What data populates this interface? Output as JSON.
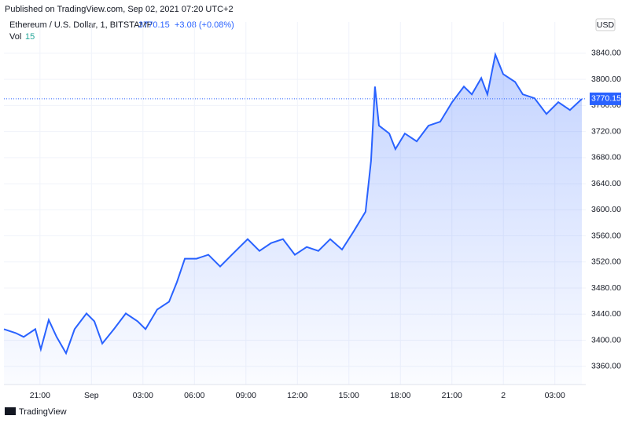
{
  "header": {
    "published": "Published on TradingView.com, Sep 02, 2021 07:20 UTC+2"
  },
  "legend": {
    "symbol": "Ethereum / U.S. Dollar, 1, BITSTAMP",
    "price": "3770.15",
    "change": "+3.08 (+0.08%)",
    "vol_label": "Vol",
    "vol_value": "15"
  },
  "currency": "USD",
  "footer": "TradingView",
  "chart_data": {
    "type": "area",
    "color": "#2962ff",
    "x": [
      0.9,
      1.59,
      2.05,
      2.73,
      3.05,
      3.51,
      3.97,
      4.52,
      5.02,
      5.71,
      6.17,
      6.63,
      7.31,
      8.0,
      8.69,
      9.15,
      9.83,
      10.52,
      10.98,
      11.44,
      12.12,
      12.81,
      13.5,
      14.18,
      15.1,
      15.79,
      16.47,
      17.16,
      17.85,
      18.54,
      19.22,
      19.91,
      20.6,
      21.28,
      21.97,
      22.29,
      22.52,
      22.75,
      23.35,
      23.71,
      24.26,
      24.95,
      25.64,
      26.32,
      27.01,
      27.7,
      28.16,
      28.71,
      29.07,
      29.53,
      29.99,
      30.68,
      31.13,
      31.82,
      32.51,
      33.2,
      33.88,
      34.57
    ],
    "values": [
      3417,
      3411,
      3405,
      3417,
      3386,
      3431,
      3405,
      3380,
      3417,
      3441,
      3429,
      3395,
      3417,
      3441,
      3429,
      3417,
      3447,
      3459,
      3489,
      3525,
      3525,
      3531,
      3513,
      3531,
      3555,
      3537,
      3549,
      3555,
      3531,
      3543,
      3537,
      3555,
      3539,
      3567,
      3597,
      3675,
      3789,
      3729,
      3717,
      3693,
      3717,
      3705,
      3729,
      3735,
      3765,
      3789,
      3777,
      3802,
      3777,
      3838,
      3808,
      3796,
      3777,
      3771,
      3747,
      3765,
      3753,
      3770
    ],
    "last_price": {
      "value": 3770.15,
      "label": "3770.15"
    },
    "xlim": [
      0.9,
      34.8
    ],
    "ylim": [
      3332,
      3888
    ],
    "xticks": [
      {
        "value": 3,
        "label": "21:00"
      },
      {
        "value": 6,
        "label": "Sep"
      },
      {
        "value": 9,
        "label": "03:00"
      },
      {
        "value": 12,
        "label": "06:00"
      },
      {
        "value": 15,
        "label": "09:00"
      },
      {
        "value": 18,
        "label": "12:00"
      },
      {
        "value": 21,
        "label": "15:00"
      },
      {
        "value": 24,
        "label": "18:00"
      },
      {
        "value": 27,
        "label": "21:00"
      },
      {
        "value": 30,
        "label": "2"
      },
      {
        "value": 33,
        "label": "03:00"
      }
    ],
    "yticks": [
      {
        "value": 3360,
        "label": "3360.00"
      },
      {
        "value": 3400,
        "label": "3400.00"
      },
      {
        "value": 3440,
        "label": "3440.00"
      },
      {
        "value": 3480,
        "label": "3480.00"
      },
      {
        "value": 3520,
        "label": "3520.00"
      },
      {
        "value": 3560,
        "label": "3560.00"
      },
      {
        "value": 3600,
        "label": "3600.00"
      },
      {
        "value": 3640,
        "label": "3640.00"
      },
      {
        "value": 3680,
        "label": "3680.00"
      },
      {
        "value": 3720,
        "label": "3720.00"
      },
      {
        "value": 3760,
        "label": "3760.00"
      },
      {
        "value": 3800,
        "label": "3800.00"
      },
      {
        "value": 3840,
        "label": "3840.00"
      }
    ],
    "grid": true
  }
}
